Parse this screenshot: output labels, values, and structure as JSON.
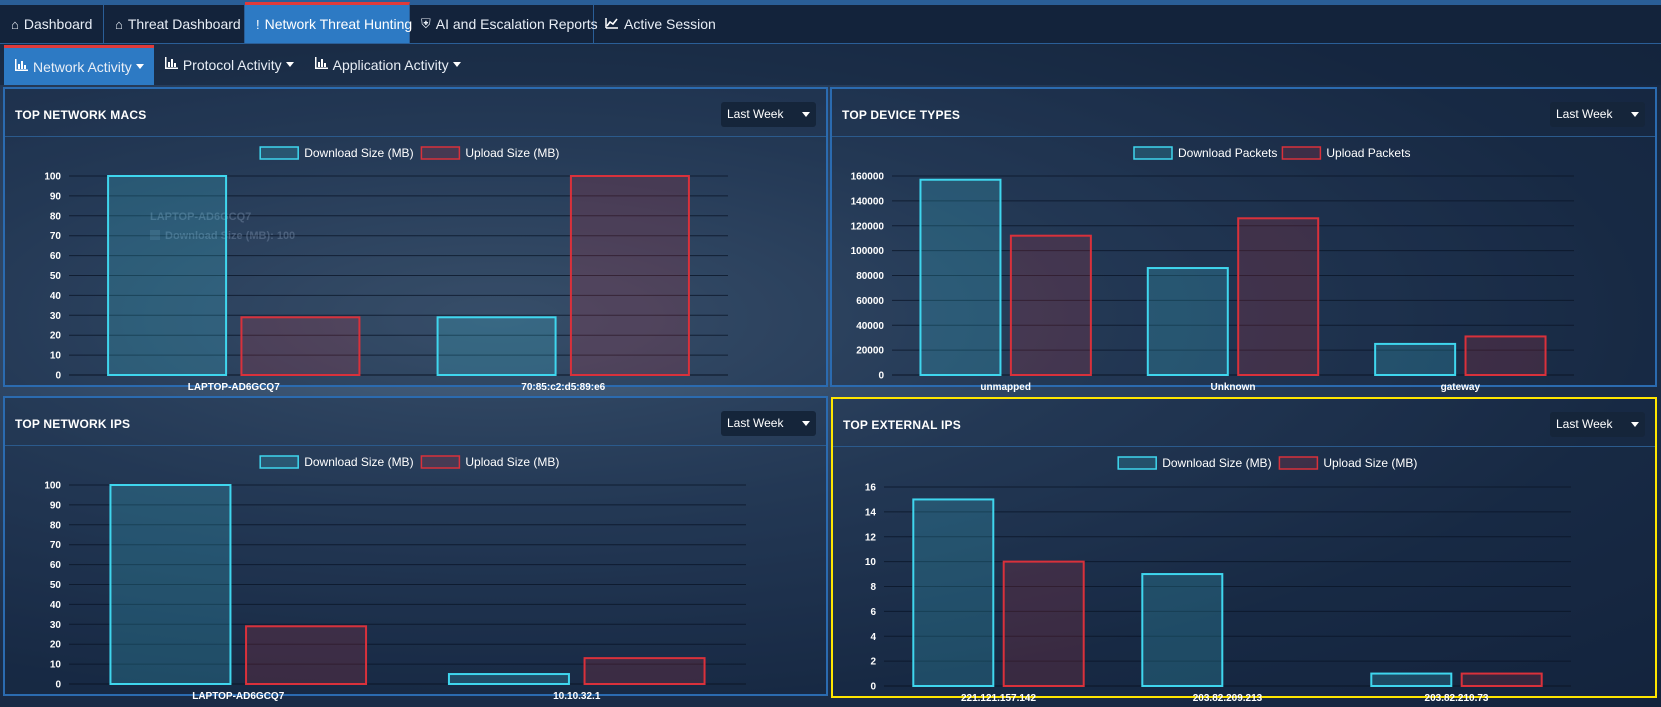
{
  "nav": {
    "tabs": [
      {
        "label": "Dashboard",
        "icon": "home-icon"
      },
      {
        "label": "Threat Dashboard",
        "icon": "home-icon"
      },
      {
        "label": "Network Threat Hunting",
        "icon": "exclamation-icon"
      },
      {
        "label": "AI and Escalation Reports",
        "icon": "shield-icon"
      },
      {
        "label": "Active Session",
        "icon": "line-chart-icon"
      }
    ],
    "subtabs": [
      {
        "label": "Network Activity",
        "icon": "bar-chart-icon"
      },
      {
        "label": "Protocol Activity",
        "icon": "bar-chart-icon"
      },
      {
        "label": "Application Activity",
        "icon": "bar-chart-icon"
      }
    ]
  },
  "colors": {
    "download": "#3fd6ee",
    "upload": "#d9313b",
    "highlight": "#ffe600",
    "active_tab": "#2d7ac4"
  },
  "panels": {
    "macs": {
      "title": "TOP NETWORK MACS",
      "period": "Last Week"
    },
    "devices": {
      "title": "TOP DEVICE TYPES",
      "period": "Last Week"
    },
    "ips": {
      "title": "TOP NETWORK IPS",
      "period": "Last Week"
    },
    "external": {
      "title": "TOP EXTERNAL IPS",
      "period": "Last Week"
    }
  },
  "tooltip_ghost": {
    "title": "LAPTOP-AD6GCQ7",
    "body": "Download Size (MB): 100"
  },
  "chart_data": [
    {
      "type": "bar",
      "categories": [
        "LAPTOP-AD6GCQ7",
        "70:85:c2:d5:89:e6"
      ],
      "series": [
        {
          "name": "Download Size (MB)",
          "values": [
            100,
            29
          ]
        },
        {
          "name": "Upload Size (MB)",
          "values": [
            29,
            100
          ]
        }
      ],
      "ylim": [
        0,
        100
      ],
      "yticks": [
        0,
        10,
        20,
        30,
        40,
        50,
        60,
        70,
        80,
        90,
        100
      ],
      "legend": "top-center",
      "grid": true
    },
    {
      "type": "bar",
      "categories": [
        "unmapped",
        "Unknown",
        "gateway"
      ],
      "series": [
        {
          "name": "Download Packets",
          "values": [
            157000,
            86000,
            25000
          ]
        },
        {
          "name": "Upload Packets",
          "values": [
            112000,
            126000,
            31000
          ]
        }
      ],
      "ylim": [
        0,
        160000
      ],
      "yticks": [
        0,
        20000,
        40000,
        60000,
        80000,
        100000,
        120000,
        140000,
        160000
      ],
      "legend": "top-center",
      "grid": true
    },
    {
      "type": "bar",
      "categories": [
        "LAPTOP-AD6GCQ7",
        "10.10.32.1"
      ],
      "series": [
        {
          "name": "Download Size (MB)",
          "values": [
            100,
            5
          ]
        },
        {
          "name": "Upload Size (MB)",
          "values": [
            29,
            13
          ]
        }
      ],
      "ylim": [
        0,
        100
      ],
      "yticks": [
        0,
        10,
        20,
        30,
        40,
        50,
        60,
        70,
        80,
        90,
        100
      ],
      "legend": "top-center",
      "grid": true
    },
    {
      "type": "bar",
      "categories": [
        "221.121.157.142",
        "203.82.209.213",
        "203.82.210.73"
      ],
      "series": [
        {
          "name": "Download Size (MB)",
          "values": [
            15,
            9,
            1
          ]
        },
        {
          "name": "Upload Size (MB)",
          "values": [
            10,
            0,
            1
          ]
        }
      ],
      "ylim": [
        0,
        16
      ],
      "yticks": [
        0,
        2,
        4,
        6,
        8,
        10,
        12,
        14,
        16
      ],
      "legend": "top-center",
      "grid": true
    }
  ]
}
